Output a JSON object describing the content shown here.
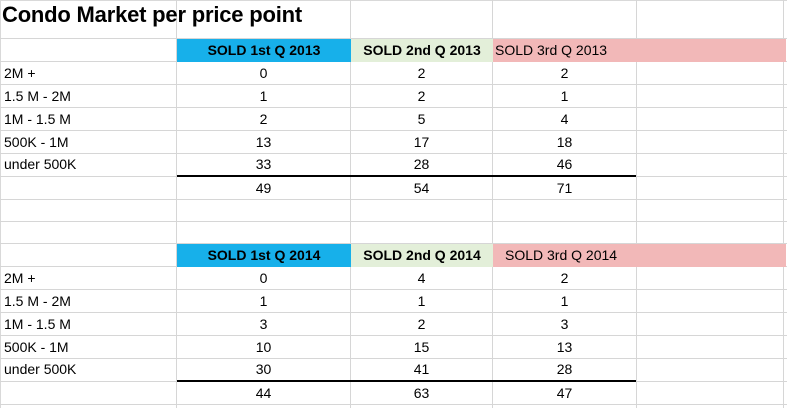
{
  "title": "Condo Market per price point",
  "labels": [
    "2M +",
    "1.5 M - 2M",
    "1M - 1.5 M",
    "500K - 1M",
    "under 500K"
  ],
  "table_2013": {
    "headers": [
      "SOLD 1st Q 2013",
      "SOLD 2nd Q 2013",
      "SOLD 3rd Q 2013"
    ],
    "rows": [
      [
        "0",
        "2",
        "2"
      ],
      [
        "1",
        "2",
        "1"
      ],
      [
        "2",
        "5",
        "4"
      ],
      [
        "13",
        "17",
        "18"
      ],
      [
        "33",
        "28",
        "46"
      ]
    ],
    "totals": [
      "49",
      "54",
      "71"
    ]
  },
  "table_2014": {
    "headers": [
      "SOLD 1st Q 2014",
      "SOLD 2nd Q 2014",
      "SOLD 3rd Q 2014"
    ],
    "rows": [
      [
        "0",
        "4",
        "2"
      ],
      [
        "1",
        "1",
        "1"
      ],
      [
        "3",
        "2",
        "3"
      ],
      [
        "10",
        "15",
        "13"
      ],
      [
        "30",
        "41",
        "28"
      ]
    ],
    "totals": [
      "44",
      "63",
      "47"
    ]
  },
  "colors": {
    "q1_header": "#17b0ea",
    "q2_header": "#e3efd9",
    "q3_header": "#f2b8b8"
  }
}
